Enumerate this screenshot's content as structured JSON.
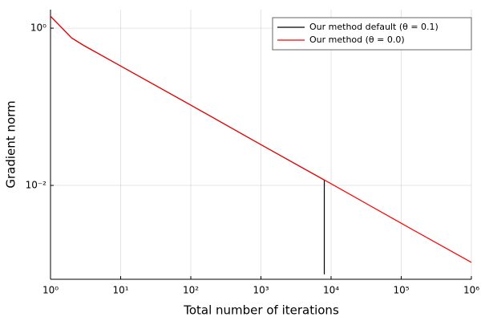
{
  "chart_data": {
    "type": "line",
    "x_label": "Total number of iterations",
    "y_label": "Gradient norm",
    "x_scale": "log",
    "y_scale": "log",
    "xlim": [
      1,
      1000000
    ],
    "ylim": [
      0.00064,
      1.72
    ],
    "xticks": [
      {
        "value": 1,
        "label": "10⁰"
      },
      {
        "value": 10,
        "label": "10¹"
      },
      {
        "value": 100,
        "label": "10²"
      },
      {
        "value": 1000,
        "label": "10³"
      },
      {
        "value": 10000,
        "label": "10⁴"
      },
      {
        "value": 100000,
        "label": "10⁵"
      },
      {
        "value": 1000000,
        "label": "10⁶"
      }
    ],
    "yticks": [
      {
        "value": 1,
        "label": "10⁰"
      },
      {
        "value": 0.01,
        "label": "10⁻²"
      }
    ],
    "grid": true,
    "legend": "upper right",
    "series": [
      {
        "name": "Our method default (θ = 0.1)",
        "color": "#000000",
        "x": [
          1,
          2,
          3,
          10,
          100,
          1000,
          8000,
          8000
        ],
        "values": [
          1.42,
          0.75,
          0.6,
          0.33,
          0.105,
          0.033,
          0.0117,
          0.00074
        ]
      },
      {
        "name": "Our method (θ = 0.0)",
        "color": "#ff0000",
        "x": [
          1,
          2,
          3,
          10,
          100,
          1000,
          10000,
          100000,
          1000000
        ],
        "values": [
          1.42,
          0.75,
          0.6,
          0.33,
          0.105,
          0.033,
          0.0105,
          0.0033,
          0.00105
        ]
      }
    ]
  }
}
